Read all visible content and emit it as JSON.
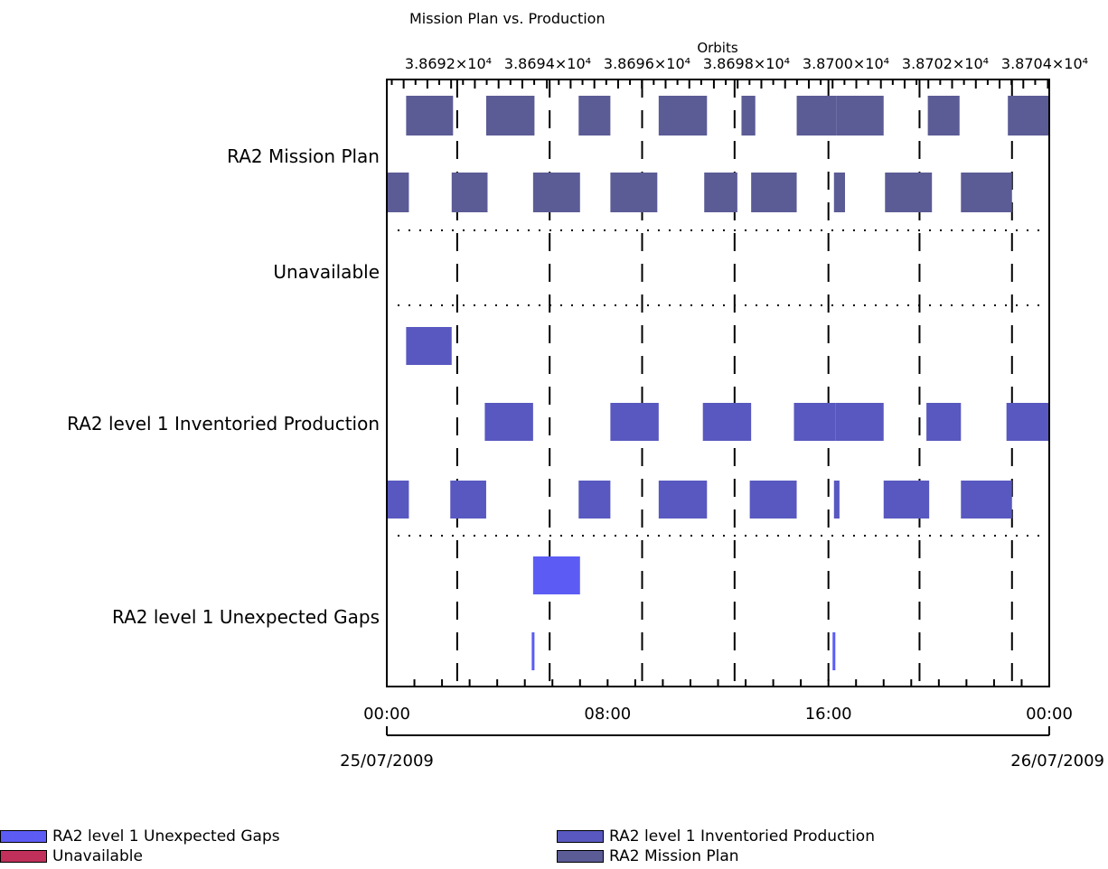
{
  "chart_data": {
    "type": "gantt",
    "title": "Mission Plan vs. Production",
    "top_axis": {
      "label": "Orbits",
      "tick_labels": [
        "3.8692×10⁴",
        "3.8694×10⁴",
        "3.8696×10⁴",
        "3.8698×10⁴",
        "3.8700×10⁴",
        "3.8702×10⁴",
        "3.8704×10⁴"
      ],
      "orbit_start_hours": [
        -0.25,
        5.8,
        11.85,
        17.9,
        23.95
      ]
    },
    "x_axis": {
      "range_hours": [
        0,
        24
      ],
      "tick_labels": [
        "00:00",
        "08:00",
        "16:00",
        "00:00"
      ],
      "tick_hours": [
        0,
        8,
        16,
        24
      ],
      "date_labels": [
        "25/07/2009",
        "26/07/2009"
      ],
      "dashed_grid_hours": [
        2.55,
        5.9,
        9.25,
        12.6,
        16.0,
        19.3,
        22.65
      ]
    },
    "rows": [
      {
        "name": "RA2 Mission Plan",
        "color": "#5b5b96",
        "tracks": [
          [
            [
              0.7,
              2.4
            ],
            [
              3.6,
              5.35
            ],
            [
              6.95,
              8.1
            ],
            [
              9.85,
              11.6
            ],
            [
              12.85,
              13.35
            ],
            [
              14.85,
              16.3
            ],
            [
              16.3,
              18.0
            ],
            [
              19.6,
              20.75
            ],
            [
              22.5,
              24.0
            ]
          ],
          [
            [
              0.0,
              0.8
            ],
            [
              2.35,
              3.65
            ],
            [
              5.3,
              7.0
            ],
            [
              8.1,
              9.8
            ],
            [
              11.5,
              12.7
            ],
            [
              13.2,
              14.85
            ],
            [
              16.2,
              16.6
            ],
            [
              18.05,
              19.75
            ],
            [
              20.8,
              22.65
            ]
          ]
        ]
      },
      {
        "name": "Unavailable",
        "color": "#c0305a",
        "tracks": [
          [],
          []
        ]
      },
      {
        "name": "RA2 level 1 Inventoried Production",
        "color": "#5858c0",
        "tracks": [
          [
            [
              0.7,
              2.35
            ],
            [
              3.55,
              5.3
            ],
            [
              8.1,
              9.85
            ],
            [
              11.45,
              13.2
            ],
            [
              14.75,
              16.25
            ],
            [
              16.25,
              18.0
            ],
            [
              19.55,
              20.8
            ],
            [
              22.45,
              24.0
            ]
          ],
          [
            [
              0.0,
              0.8
            ],
            [
              2.3,
              3.6
            ],
            [
              6.95,
              8.1
            ],
            [
              9.85,
              11.6
            ],
            [
              13.15,
              14.85
            ],
            [
              16.2,
              16.4
            ],
            [
              18.0,
              19.65
            ],
            [
              20.8,
              22.65
            ]
          ]
        ]
      },
      {
        "name": "RA2 level 1 Unexpected Gaps",
        "color": "#5c5cf5",
        "tracks": [
          [
            [
              5.3,
              7.0
            ]
          ],
          [
            [
              5.25,
              5.35
            ],
            [
              16.15,
              16.25
            ]
          ]
        ]
      }
    ],
    "legend": [
      {
        "name": "RA2 level 1 Unexpected Gaps",
        "color": "#5c5cf5"
      },
      {
        "name": "Unavailable",
        "color": "#c0305a"
      },
      {
        "name": "RA2 level 1 Inventoried Production",
        "color": "#5858c0"
      },
      {
        "name": "RA2 Mission Plan",
        "color": "#5b5b96"
      }
    ]
  }
}
